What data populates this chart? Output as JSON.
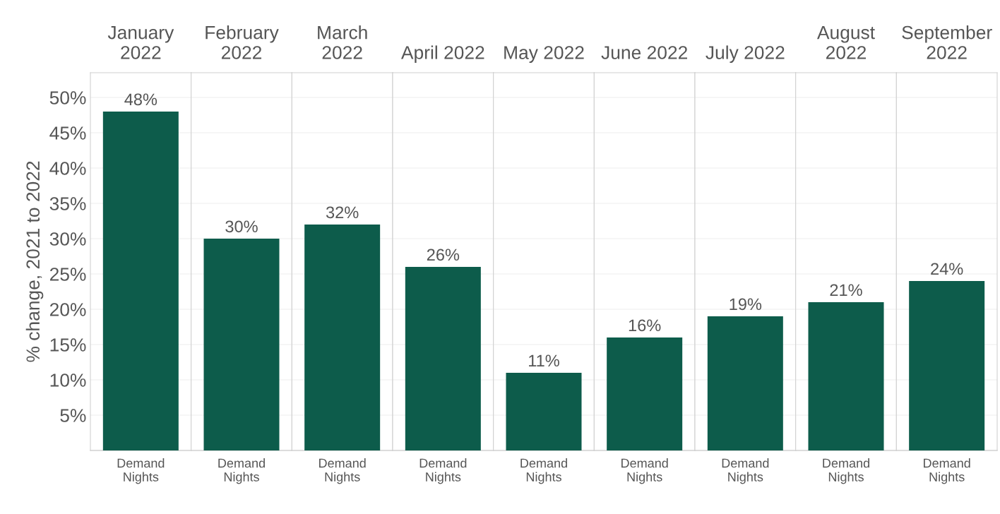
{
  "chart_data": [
    {
      "type": "bar",
      "title": "January 2022",
      "ylabel": "% change, 2021 to 2022",
      "categories": [
        "Demand Nights"
      ],
      "values": [
        48
      ],
      "value_labels": [
        "48%"
      ],
      "color": "#0d5c4b",
      "ylim": [
        0,
        53.5
      ],
      "yticks": [
        {
          "value": 5,
          "label": "5%"
        },
        {
          "value": 10,
          "label": "10%"
        },
        {
          "value": 15,
          "label": "15%"
        },
        {
          "value": 20,
          "label": "20%"
        },
        {
          "value": 25,
          "label": "25%"
        },
        {
          "value": 30,
          "label": "30%"
        },
        {
          "value": 35,
          "label": "35%"
        },
        {
          "value": 40,
          "label": "40%"
        },
        {
          "value": 45,
          "label": "45%"
        },
        {
          "value": 50,
          "label": "50%"
        }
      ],
      "grid": "y"
    },
    {
      "type": "bar",
      "title": "February 2022",
      "categories": [
        "Demand Nights"
      ],
      "values": [
        30
      ],
      "value_labels": [
        "30%"
      ],
      "color": "#0d5c4b",
      "ylim": [
        0,
        53.5
      ],
      "tick_labels": "x",
      "grid": "y"
    },
    {
      "type": "bar",
      "title": "March 2022",
      "categories": [
        "Demand Nights"
      ],
      "values": [
        32
      ],
      "value_labels": [
        "32%"
      ],
      "color": "#0d5c4b",
      "ylim": [
        0,
        53.5
      ],
      "tick_labels": "x",
      "grid": "y"
    },
    {
      "type": "bar",
      "title": "April 2022",
      "categories": [
        "Demand Nights"
      ],
      "values": [
        26
      ],
      "value_labels": [
        "26%"
      ],
      "color": "#0d5c4b",
      "ylim": [
        0,
        53.5
      ],
      "tick_labels": "x",
      "grid": "y"
    },
    {
      "type": "bar",
      "title": "May 2022",
      "categories": [
        "Demand Nights"
      ],
      "values": [
        11
      ],
      "value_labels": [
        "11%"
      ],
      "color": "#0d5c4b",
      "ylim": [
        0,
        53.5
      ],
      "tick_labels": "x",
      "grid": "y"
    },
    {
      "type": "bar",
      "title": "June 2022",
      "categories": [
        "Demand Nights"
      ],
      "values": [
        16
      ],
      "value_labels": [
        "16%"
      ],
      "color": "#0d5c4b",
      "ylim": [
        0,
        53.5
      ],
      "tick_labels": "x",
      "grid": "y"
    },
    {
      "type": "bar",
      "title": "July 2022",
      "categories": [
        "Demand Nights"
      ],
      "values": [
        19
      ],
      "value_labels": [
        "19%"
      ],
      "color": "#0d5c4b",
      "ylim": [
        0,
        53.5
      ],
      "tick_labels": "x",
      "grid": "y"
    },
    {
      "type": "bar",
      "title": "August 2022",
      "categories": [
        "Demand Nights"
      ],
      "values": [
        21
      ],
      "value_labels": [
        "21%"
      ],
      "color": "#0d5c4b",
      "ylim": [
        0,
        53.5
      ],
      "tick_labels": "x",
      "grid": "y"
    },
    {
      "type": "bar",
      "title": "September 2022",
      "categories": [
        "Demand Nights"
      ],
      "values": [
        24
      ],
      "value_labels": [
        "24%"
      ],
      "color": "#0d5c4b",
      "ylim": [
        0,
        53.5
      ],
      "tick_labels": "x",
      "grid": "y"
    }
  ]
}
